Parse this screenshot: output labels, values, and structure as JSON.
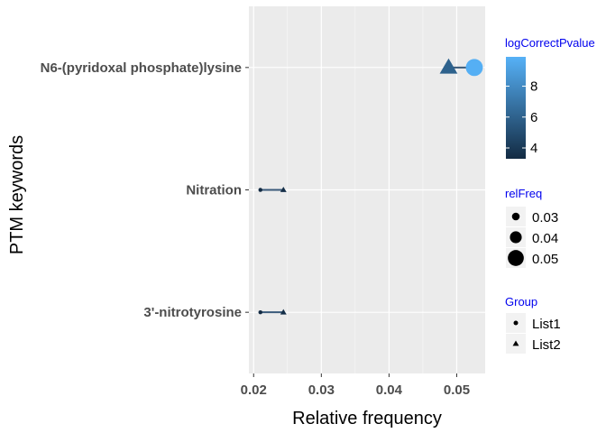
{
  "chart_data": {
    "type": "scatter",
    "xlabel": "Relative frequency",
    "ylabel": "PTM keywords",
    "xlim": [
      0.0193,
      0.0542
    ],
    "x_ticks": [
      0.02,
      0.03,
      0.04,
      0.05
    ],
    "x_tick_labels": [
      "0.02",
      "0.03",
      "0.04",
      "0.05"
    ],
    "categories": [
      "3'-nitrotyrosine",
      "Nitration",
      "N6-(pyridoxal phosphate)lysine"
    ],
    "grid": true,
    "series": [
      {
        "name": "List1",
        "shape": "circle",
        "points": [
          {
            "category": "N6-(pyridoxal phosphate)lysine",
            "x": 0.0526,
            "logCorrectPvalue": 9.8
          },
          {
            "category": "Nitration",
            "x": 0.021,
            "logCorrectPvalue": 3.3
          },
          {
            "category": "3'-nitrotyrosine",
            "x": 0.021,
            "logCorrectPvalue": 3.3
          }
        ]
      },
      {
        "name": "List2",
        "shape": "triangle",
        "points": [
          {
            "category": "N6-(pyridoxal phosphate)lysine",
            "x": 0.0488,
            "logCorrectPvalue": 6.0
          },
          {
            "category": "Nitration",
            "x": 0.0244,
            "logCorrectPvalue": 3.5
          },
          {
            "category": "3'-nitrotyrosine",
            "x": 0.0244,
            "logCorrectPvalue": 3.5
          }
        ]
      }
    ],
    "legends": {
      "color": {
        "title": "logCorrectPvalue",
        "breaks": [
          4,
          6,
          8
        ],
        "labels": [
          "4",
          "6",
          "8"
        ],
        "range": [
          3.3,
          9.9
        ],
        "low_color": "#132b43",
        "high_color": "#56b1f7"
      },
      "size": {
        "title": "relFreq",
        "labels": [
          "0.03",
          "0.04",
          "0.05"
        ],
        "values": [
          0.03,
          0.04,
          0.05
        ]
      },
      "shape": {
        "title": "Group",
        "labels": [
          "List1",
          "List2"
        ]
      },
      "placement": "right"
    },
    "colors": {
      "panel_bg": "#ebebeb",
      "grid_major": "#ffffff",
      "connector": "#3a5a7a"
    }
  }
}
